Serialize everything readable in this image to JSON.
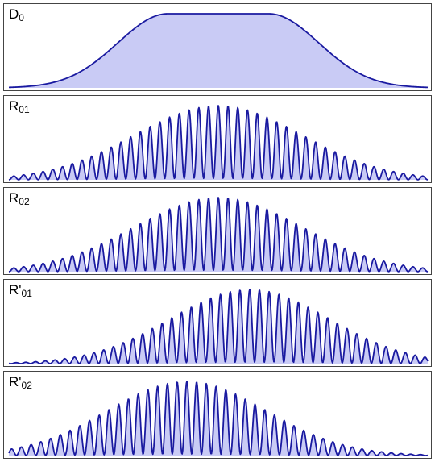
{
  "colors": {
    "line": "#1a1aa0",
    "fill": "#c9cbf5",
    "frame": "#444444"
  },
  "chart_data": [
    {
      "type": "area",
      "label": {
        "main": "D",
        "sub": "0"
      },
      "envelope": {
        "kind": "flat-top",
        "center": 0.5,
        "flat_half_width": 0.12,
        "edge_width": 0.12
      },
      "oscillation": null,
      "grid": false
    },
    {
      "type": "area",
      "label": {
        "main": "R",
        "sub": "01"
      },
      "envelope": {
        "kind": "gaussian",
        "center": 0.5,
        "sigma": 0.2
      },
      "oscillation": {
        "period": 0.0465,
        "phase": 0.0,
        "depth": 0.98
      },
      "grid": false
    },
    {
      "type": "area",
      "label": {
        "main": "R",
        "sub": "02"
      },
      "envelope": {
        "kind": "gaussian",
        "center": 0.5,
        "sigma": 0.2
      },
      "oscillation": {
        "period": 0.0465,
        "phase": 0.5,
        "depth": 0.98
      },
      "grid": false
    },
    {
      "type": "area",
      "label": {
        "main": "R'",
        "sub": "01"
      },
      "envelope": {
        "kind": "gaussian",
        "center": 0.575,
        "sigma": 0.19
      },
      "oscillation": {
        "period": 0.0465,
        "phase": 0.0,
        "depth": 0.98
      },
      "grid": false
    },
    {
      "type": "area",
      "label": {
        "main": "R'",
        "sub": "02"
      },
      "envelope": {
        "kind": "gaussian",
        "center": 0.425,
        "sigma": 0.19
      },
      "oscillation": {
        "period": 0.0465,
        "phase": 0.5,
        "depth": 0.98
      },
      "grid": false
    }
  ]
}
